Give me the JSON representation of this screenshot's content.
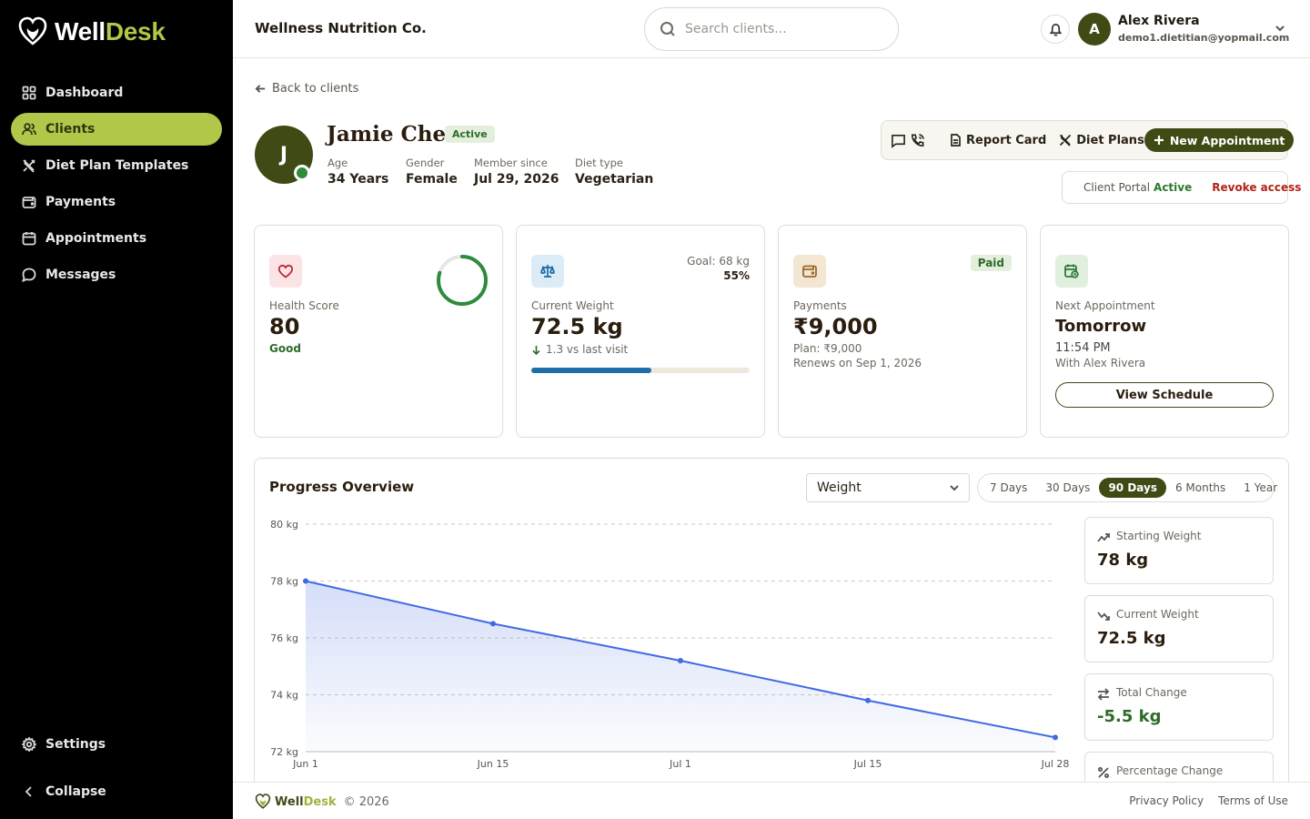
{
  "brand": {
    "part1": "Well",
    "part2": "Desk",
    "accent_color": "#b1c74a",
    "primary_color": "#3f4a15"
  },
  "sidebar": {
    "items": [
      {
        "label": "Dashboard",
        "icon": "grid-icon",
        "active": false
      },
      {
        "label": "Clients",
        "icon": "users-icon",
        "active": true
      },
      {
        "label": "Diet Plan Templates",
        "icon": "utensils-icon",
        "active": false
      },
      {
        "label": "Payments",
        "icon": "wallet-icon",
        "active": false
      },
      {
        "label": "Appointments",
        "icon": "calendar-icon",
        "active": false
      },
      {
        "label": "Messages",
        "icon": "message-icon",
        "active": false
      }
    ],
    "settings_label": "Settings",
    "collapse_label": "Collapse"
  },
  "header": {
    "org_name": "Wellness Nutrition Co.",
    "search_placeholder": "Search clients...",
    "user_initial": "A",
    "user_name": "Alex Rivera",
    "user_email": "demo1.dietitian@yopmail.com"
  },
  "client": {
    "back_label": "Back to clients",
    "initial": "J",
    "name": "Jamie Chen",
    "status": "Active",
    "meta": [
      {
        "label": "Age",
        "value": "34 Years"
      },
      {
        "label": "Gender",
        "value": "Female"
      },
      {
        "label": "Member since",
        "value": "Jul 29, 2026"
      },
      {
        "label": "Diet type",
        "value": "Vegetarian"
      }
    ]
  },
  "actions": {
    "report_card": "Report Card",
    "diet_plans": "Diet Plans",
    "new_appointment": "New Appointment"
  },
  "portal": {
    "label": "Client Portal",
    "status": "Active",
    "revoke": "Revoke access"
  },
  "cards": {
    "health": {
      "label": "Health Score",
      "value": "80",
      "rating": "Good",
      "score_fraction": 0.8
    },
    "weight": {
      "goal": "Goal: 68 kg",
      "percent": "55%",
      "label": "Current Weight",
      "value": "72.5 kg",
      "change": "1.3 vs last visit",
      "progress_fraction": 0.55
    },
    "payments": {
      "badge": "Paid",
      "label": "Payments",
      "value": "₹9,000",
      "plan": "Plan: ₹9,000",
      "renews": "Renews on Sep 1, 2026"
    },
    "appointment": {
      "label": "Next Appointment",
      "value": "Tomorrow",
      "time": "11:54 PM",
      "with": "With Alex Rivera",
      "button": "View Schedule"
    }
  },
  "progress": {
    "title": "Progress Overview",
    "metric_selected": "Weight",
    "ranges": [
      "7 Days",
      "30 Days",
      "90 Days",
      "6 Months",
      "1 Year"
    ],
    "selected_range": "90 Days",
    "metrics": [
      {
        "label": "Starting Weight",
        "value": "78 kg",
        "icon": "trend-up-icon"
      },
      {
        "label": "Current Weight",
        "value": "72.5 kg",
        "icon": "trend-down-icon"
      },
      {
        "label": "Total Change",
        "value": "-5.5 kg",
        "icon": "swap-icon"
      },
      {
        "label": "Percentage Change",
        "value": "",
        "icon": "percent-icon"
      }
    ]
  },
  "chart_data": {
    "type": "area",
    "x": [
      "Jun 1",
      "Jun 15",
      "Jul 1",
      "Jul 15",
      "Jul 28"
    ],
    "series": [
      {
        "values": [
          78,
          76.5,
          75.2,
          73.8,
          72.5
        ]
      }
    ],
    "y_ticks": [
      "80 kg",
      "78 kg",
      "76 kg",
      "74 kg",
      "72 kg"
    ],
    "ylim": [
      72,
      80
    ],
    "grid": true,
    "line_color": "#4169e1"
  },
  "footer": {
    "copyright": "© 2026",
    "links": [
      "Privacy Policy",
      "Terms of Use"
    ]
  }
}
